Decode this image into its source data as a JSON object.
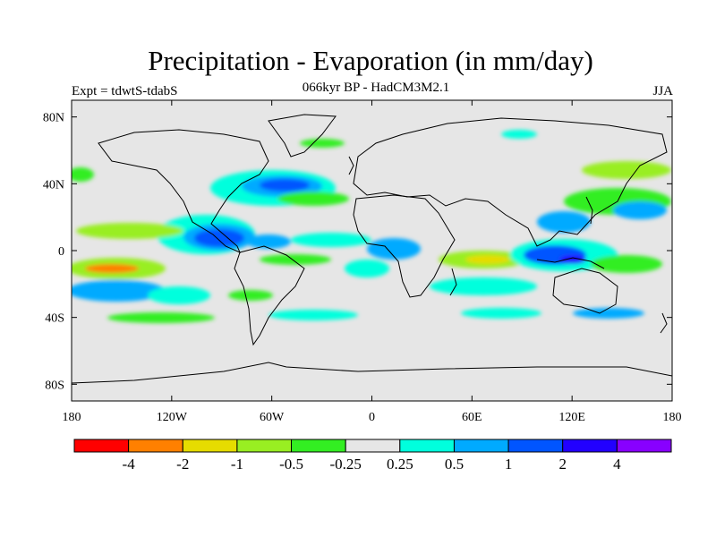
{
  "title": "Precipitation - Evaporation (in mm/day)",
  "subtitle": "066kyr BP - HadCM3M2.1",
  "left_label": "Expt = tdwtS-tdabS",
  "right_label": "JJA",
  "map": {
    "projection": "cylindrical equidistant",
    "lon_range": [
      -180,
      180
    ],
    "lat_range": [
      -90,
      90
    ],
    "background_color": "#e6e6e6",
    "lat_ticks": [
      {
        "value": 80,
        "label": "80N"
      },
      {
        "value": 40,
        "label": "40N"
      },
      {
        "value": 0,
        "label": "0"
      },
      {
        "value": -40,
        "label": "40S"
      },
      {
        "value": -80,
        "label": "80S"
      }
    ],
    "lon_ticks": [
      {
        "value": -180,
        "label": "180"
      },
      {
        "value": -120,
        "label": "120W"
      },
      {
        "value": -60,
        "label": "60W"
      },
      {
        "value": 0,
        "label": "0"
      },
      {
        "value": 60,
        "label": "60E"
      },
      {
        "value": 120,
        "label": "120E"
      },
      {
        "value": 180,
        "label": "180"
      }
    ]
  },
  "colorbar": {
    "colors": [
      "#ff0000",
      "#ff8000",
      "#e6dc00",
      "#99ee22",
      "#33ee22",
      "#e6e6e6",
      "#00ffdd",
      "#00aaff",
      "#0055ff",
      "#2200ff",
      "#8800ff"
    ],
    "boundary_labels": [
      "-4",
      "-2",
      "-1",
      "-0.5",
      "-0.25",
      "0.25",
      "0.5",
      "1",
      "2",
      "4"
    ]
  }
}
